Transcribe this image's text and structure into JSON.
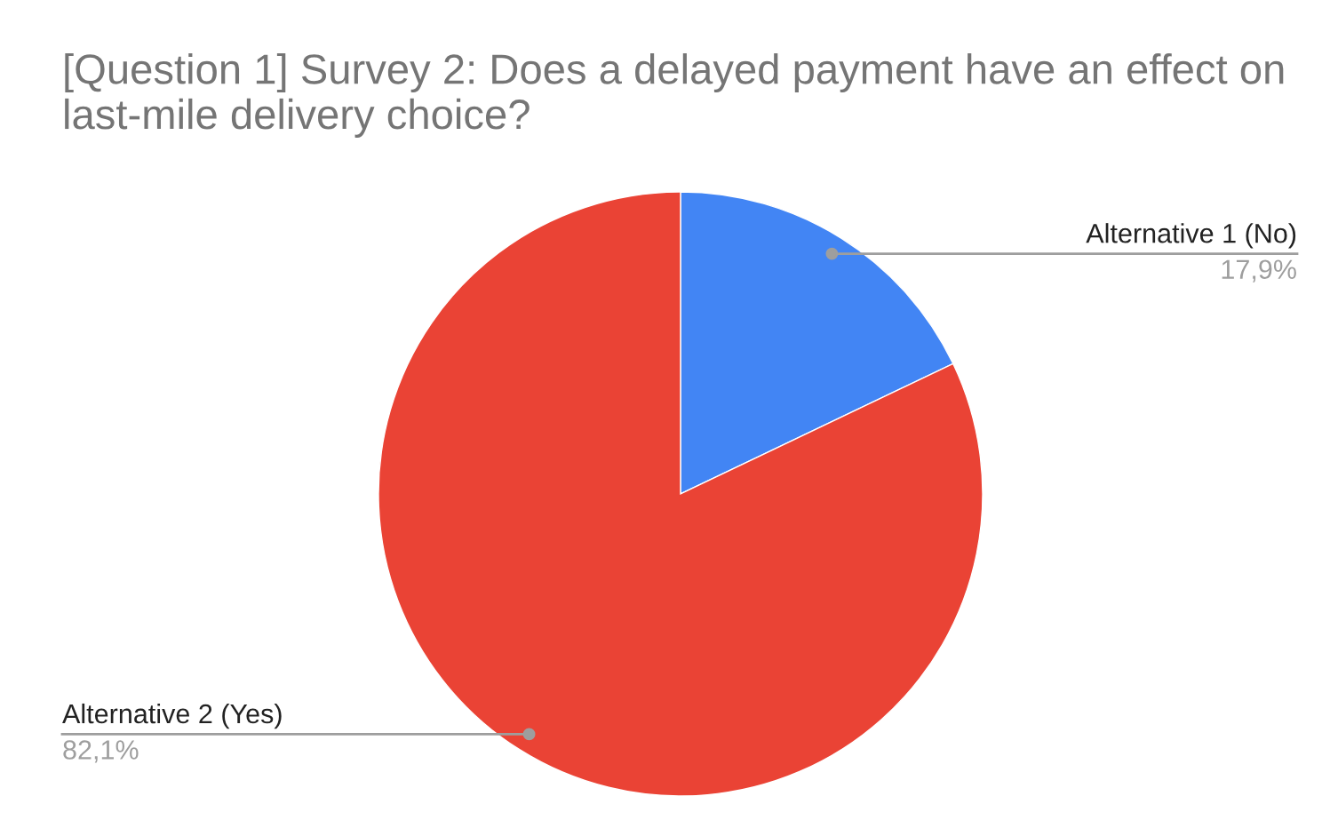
{
  "chart_data": {
    "type": "pie",
    "title": "[Question 1] Survey 2: Does a delayed payment have an effect on last-mile delivery choice?",
    "categories": [
      "Alternative 1 (No)",
      "Alternative 2 (Yes)"
    ],
    "values": [
      17.9,
      82.1
    ],
    "value_labels": [
      "17,9%",
      "82,1%"
    ],
    "colors": [
      "#4285f4",
      "#ea4335"
    ],
    "legend": false
  }
}
